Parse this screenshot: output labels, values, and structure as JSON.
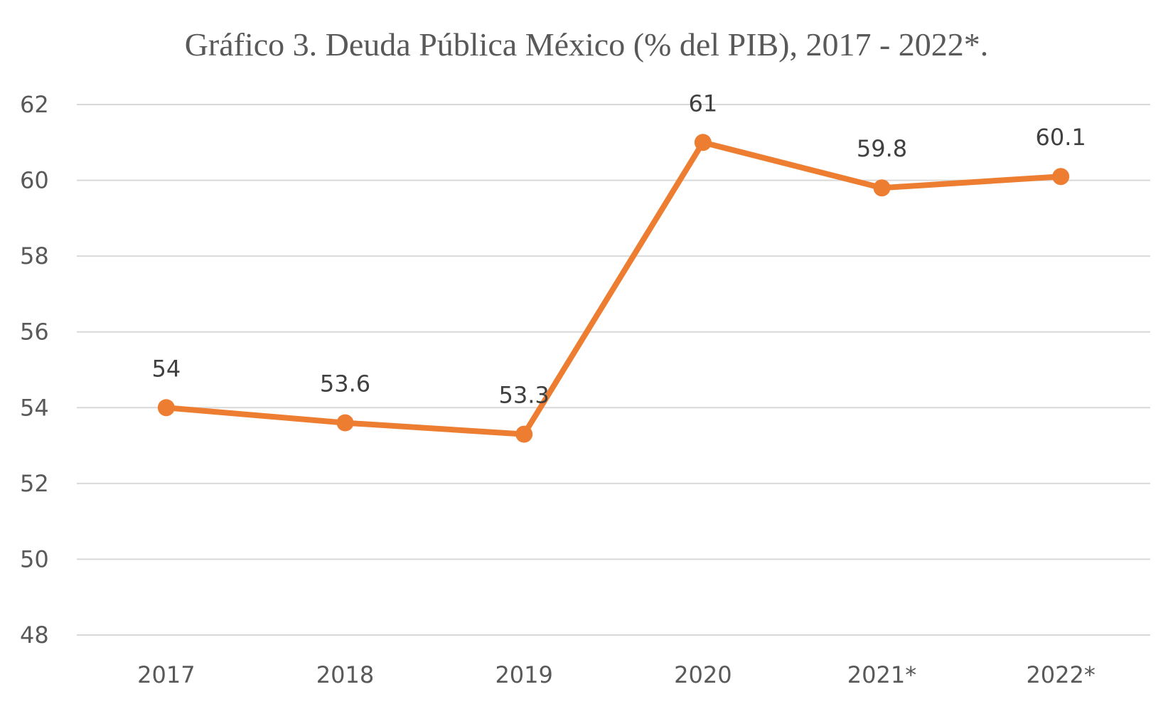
{
  "chart_data": {
    "type": "line",
    "title": "Gráfico 3. Deuda Pública México (% del PIB), 2017 - 2022*.",
    "xlabel": "",
    "ylabel": "",
    "categories": [
      "2017",
      "2018",
      "2019",
      "2020",
      "2021*",
      "2022*"
    ],
    "series": [
      {
        "values": [
          54,
          53.6,
          53.3,
          61,
          59.8,
          60.1
        ],
        "data_labels": [
          "54",
          "53.6",
          "53.3",
          "61",
          "59.8",
          "60.1"
        ],
        "color": "#ED7D31"
      }
    ],
    "ylim": [
      48,
      62
    ],
    "yticks": [
      {
        "value": 48,
        "label": "48"
      },
      {
        "value": 50,
        "label": "50"
      },
      {
        "value": 52,
        "label": "52"
      },
      {
        "value": 54,
        "label": "54"
      },
      {
        "value": 56,
        "label": "56"
      },
      {
        "value": 58,
        "label": "58"
      },
      {
        "value": 60,
        "label": "60"
      },
      {
        "value": 62,
        "label": "62"
      }
    ],
    "grid": true,
    "legend": "none"
  }
}
